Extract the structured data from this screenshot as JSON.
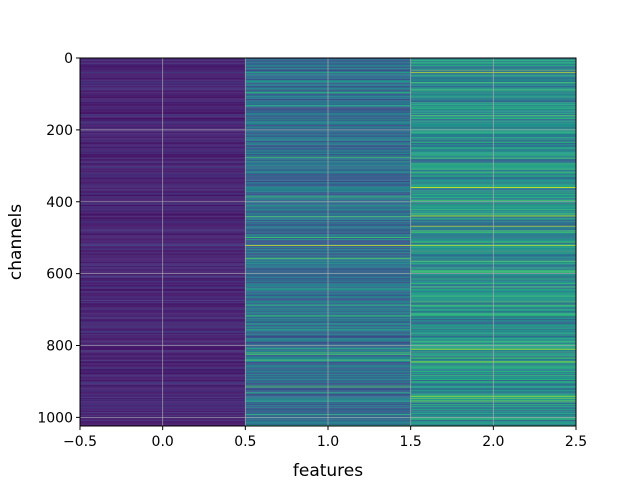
{
  "chart_data": {
    "type": "heatmap",
    "title": "",
    "xlabel": "features",
    "ylabel": "channels",
    "xlim": [
      -0.5,
      2.5
    ],
    "ylim": [
      1024,
      0
    ],
    "y_inverted": true,
    "grid": true,
    "colormap": "viridis",
    "n_rows": 1024,
    "n_columns": 3,
    "xticks": [
      -0.5,
      0.0,
      0.5,
      1.0,
      1.5,
      2.0,
      2.5
    ],
    "xtick_labels": [
      "−0.5",
      "0.0",
      "0.5",
      "1.0",
      "1.5",
      "2.0",
      "2.5"
    ],
    "yticks": [
      0,
      200,
      400,
      600,
      800,
      1000
    ],
    "ytick_labels": [
      "0",
      "200",
      "400",
      "600",
      "800",
      "1000"
    ],
    "column_mean_levels": [
      0.12,
      0.35,
      0.5
    ],
    "highlight_rows": [
      {
        "row": 40,
        "column_levels": [
          0.2,
          0.55,
          0.95
        ]
      },
      {
        "row": 360,
        "column_levels": [
          0.15,
          0.45,
          0.9
        ]
      },
      {
        "row": 440,
        "column_levels": [
          0.18,
          0.7,
          0.85
        ]
      },
      {
        "row": 522,
        "column_levels": [
          0.2,
          0.95,
          0.9
        ]
      },
      {
        "row": 565,
        "column_levels": [
          0.15,
          0.6,
          0.7
        ]
      },
      {
        "row": 748,
        "column_levels": [
          0.2,
          0.6,
          0.65
        ]
      },
      {
        "row": 955,
        "column_levels": [
          0.15,
          0.55,
          0.75
        ]
      }
    ]
  }
}
